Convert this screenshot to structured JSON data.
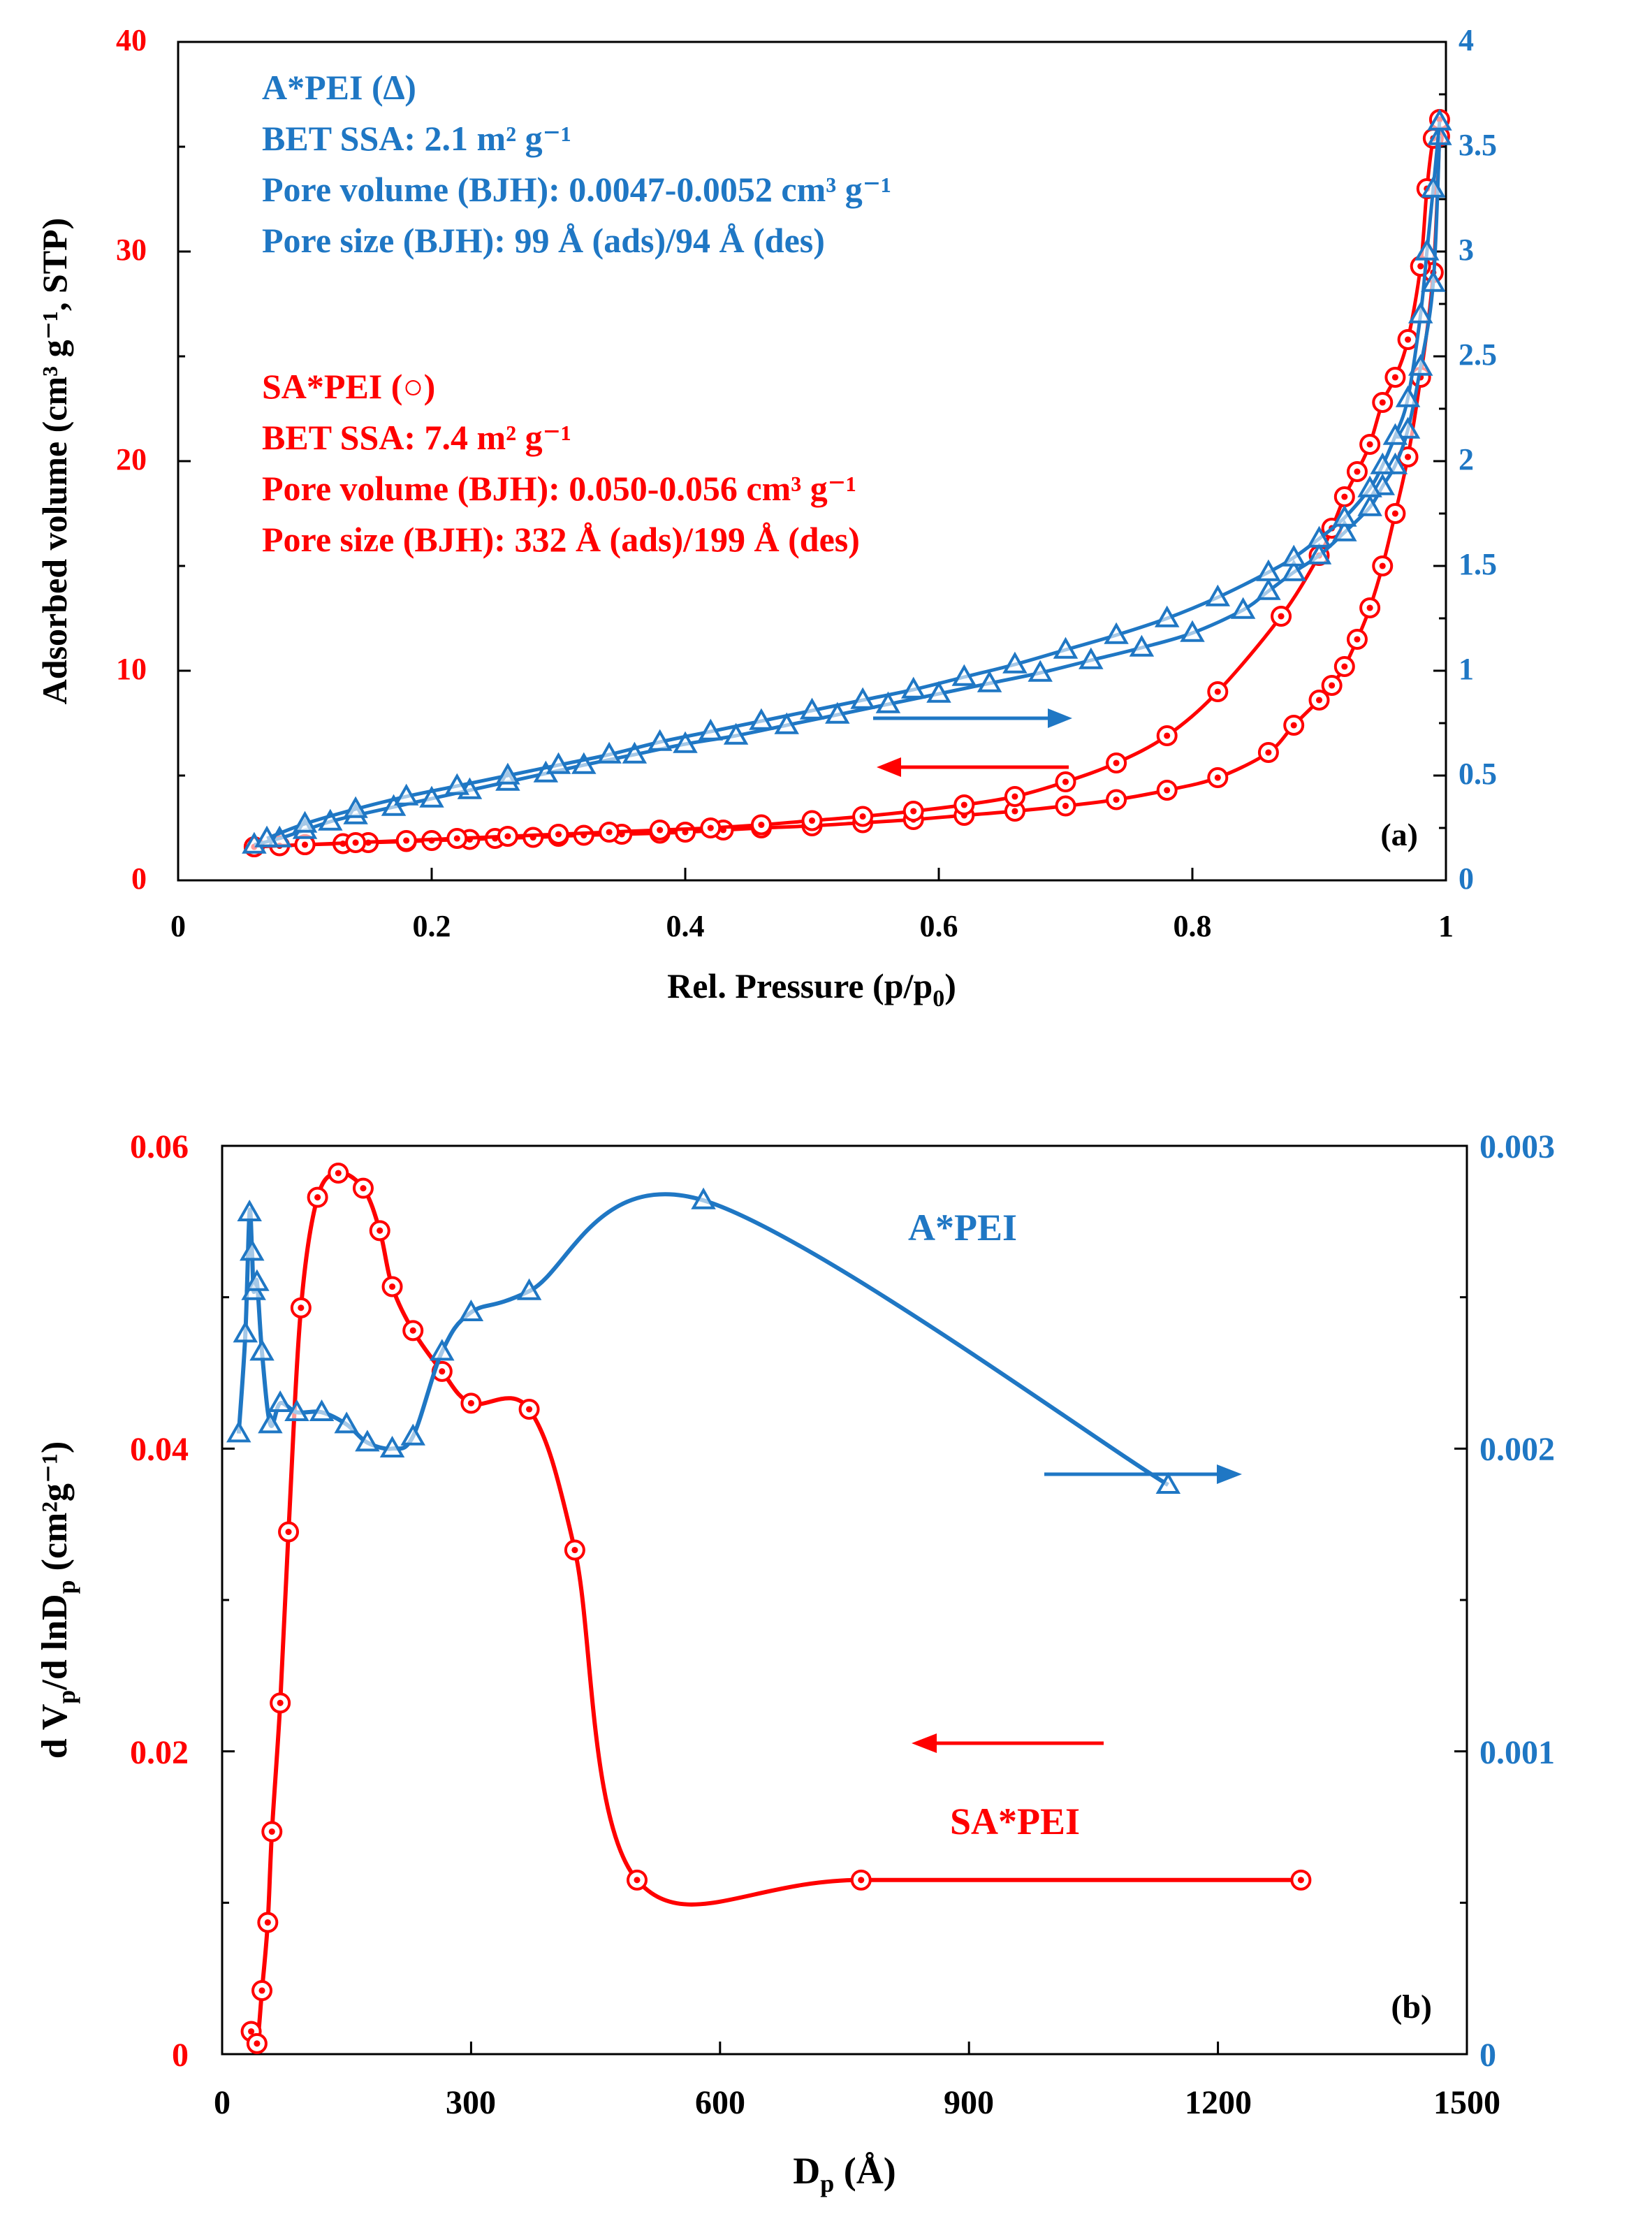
{
  "colors": {
    "red": "#ff0000",
    "blue": "#1f77c4",
    "axis": "#000000"
  },
  "chart_data": [
    {
      "panel_label": "(a)",
      "type": "line",
      "xlabel": "Rel. Pressure (p/p",
      "xlabel_sub": "0",
      "xlabel_end": ")",
      "ylabel_left": "Adsorbed volume (cm³ g⁻¹, STP)",
      "xlim": [
        0,
        1
      ],
      "ylim_left": [
        0,
        40
      ],
      "ylim_right": [
        0,
        4
      ],
      "xticks": [
        "0",
        "0.2",
        "0.4",
        "0.6",
        "0.8",
        "1"
      ],
      "yticks_left": [
        "0",
        "10",
        "20",
        "30",
        "40"
      ],
      "yticks_right": [
        "0",
        "0.5",
        "1",
        "1.5",
        "2",
        "2.5",
        "3",
        "3.5",
        "4"
      ],
      "annotations": {
        "blue": [
          "A*PEI (∆)",
          "BET SSA:  2.1 m² g⁻¹",
          "Pore volume (BJH): 0.0047-0.0052 cm³ g⁻¹",
          "Pore size (BJH): 99 Å (ads)/94 Å (des)"
        ],
        "red": [
          "SA*PEI (○)",
          "BET SSA:  7.4 m² g⁻¹",
          "Pore volume (BJH): 0.050-0.056 cm³ g⁻¹",
          "Pore size (BJH): 332 Å (ads)/199 Å (des)"
        ]
      },
      "series": [
        {
          "label": "SA*PEI adsorption",
          "axis": "left",
          "marker": "circle",
          "color": "red",
          "x": [
            0.06,
            0.08,
            0.1,
            0.13,
            0.15,
            0.18,
            0.2,
            0.23,
            0.25,
            0.28,
            0.3,
            0.32,
            0.35,
            0.38,
            0.4,
            0.43,
            0.46,
            0.5,
            0.54,
            0.58,
            0.62,
            0.66,
            0.7,
            0.74,
            0.78,
            0.82,
            0.86,
            0.88,
            0.9,
            0.91,
            0.92,
            0.93,
            0.94,
            0.95,
            0.96,
            0.97,
            0.98,
            0.99,
            0.995
          ],
          "y": [
            1.6,
            1.65,
            1.7,
            1.75,
            1.8,
            1.85,
            1.9,
            1.95,
            2.0,
            2.05,
            2.1,
            2.15,
            2.2,
            2.25,
            2.3,
            2.4,
            2.5,
            2.6,
            2.75,
            2.9,
            3.1,
            3.3,
            3.55,
            3.85,
            4.3,
            4.9,
            6.1,
            7.4,
            8.6,
            9.3,
            10.2,
            11.5,
            13.0,
            15.0,
            17.5,
            20.2,
            24.0,
            29.0,
            35.5
          ]
        },
        {
          "label": "SA*PEI desorption",
          "axis": "left",
          "marker": "circle",
          "color": "red",
          "x": [
            0.995,
            0.99,
            0.985,
            0.98,
            0.97,
            0.96,
            0.95,
            0.94,
            0.93,
            0.92,
            0.91,
            0.9,
            0.87,
            0.82,
            0.78,
            0.74,
            0.7,
            0.66,
            0.62,
            0.58,
            0.54,
            0.5,
            0.46,
            0.42,
            0.38,
            0.34,
            0.3,
            0.26,
            0.22,
            0.18,
            0.14,
            0.1,
            0.06
          ],
          "y": [
            36.3,
            35.4,
            33.0,
            29.3,
            25.8,
            24.0,
            22.8,
            20.8,
            19.5,
            18.3,
            16.8,
            15.5,
            12.6,
            9.0,
            6.9,
            5.6,
            4.7,
            4.0,
            3.6,
            3.3,
            3.05,
            2.85,
            2.65,
            2.5,
            2.4,
            2.3,
            2.2,
            2.1,
            2.0,
            1.9,
            1.8,
            1.7,
            1.6
          ]
        },
        {
          "label": "A*PEI adsorption",
          "axis": "right",
          "marker": "triangle",
          "color": "blue",
          "x": [
            0.06,
            0.08,
            0.1,
            0.12,
            0.14,
            0.17,
            0.2,
            0.23,
            0.26,
            0.29,
            0.32,
            0.36,
            0.4,
            0.44,
            0.48,
            0.52,
            0.56,
            0.6,
            0.64,
            0.68,
            0.72,
            0.76,
            0.8,
            0.84,
            0.86,
            0.88,
            0.9,
            0.92,
            0.94,
            0.95,
            0.96,
            0.97,
            0.98,
            0.99,
            0.995
          ],
          "y": [
            0.17,
            0.2,
            0.24,
            0.28,
            0.31,
            0.35,
            0.39,
            0.43,
            0.47,
            0.51,
            0.55,
            0.6,
            0.65,
            0.69,
            0.74,
            0.79,
            0.84,
            0.89,
            0.94,
            0.99,
            1.05,
            1.11,
            1.18,
            1.29,
            1.38,
            1.47,
            1.55,
            1.66,
            1.78,
            1.88,
            1.98,
            2.15,
            2.45,
            2.85,
            3.55
          ]
        },
        {
          "label": "A*PEI desorption",
          "axis": "right",
          "marker": "triangle",
          "color": "blue",
          "x": [
            0.995,
            0.99,
            0.985,
            0.98,
            0.97,
            0.96,
            0.95,
            0.94,
            0.92,
            0.9,
            0.88,
            0.86,
            0.82,
            0.78,
            0.74,
            0.7,
            0.66,
            0.62,
            0.58,
            0.54,
            0.5,
            0.46,
            0.42,
            0.38,
            0.34,
            0.3,
            0.26,
            0.22,
            0.18,
            0.14,
            0.1,
            0.07
          ],
          "y": [
            3.62,
            3.3,
            3.0,
            2.7,
            2.3,
            2.12,
            1.98,
            1.87,
            1.73,
            1.63,
            1.54,
            1.47,
            1.35,
            1.25,
            1.17,
            1.1,
            1.03,
            0.97,
            0.91,
            0.86,
            0.81,
            0.76,
            0.71,
            0.66,
            0.6,
            0.55,
            0.5,
            0.45,
            0.4,
            0.34,
            0.27,
            0.2
          ]
        }
      ]
    },
    {
      "panel_label": "(b)",
      "type": "line",
      "xlabel": "D",
      "xlabel_sub": "p",
      "xlabel_end": " (Å)",
      "ylabel_left": "d V",
      "ylabel_left_sub1": "p",
      "ylabel_left_mid": "/d  lnD",
      "ylabel_left_sub2": "p",
      "ylabel_left_end": " (cm²g⁻¹)",
      "xlim": [
        0,
        1500
      ],
      "ylim_left": [
        0,
        0.06
      ],
      "ylim_right": [
        0,
        0.003
      ],
      "xticks": [
        "0",
        "300",
        "600",
        "900",
        "1200",
        "1500"
      ],
      "yticks_left": [
        "0",
        "0.02",
        "0.04",
        "0.06"
      ],
      "yticks_right": [
        "0",
        "0.001",
        "0.002",
        "0.003"
      ],
      "annotations": {
        "blue_label": "A*PEI",
        "red_label": "SA*PEI"
      },
      "series": [
        {
          "label": "SA*PEI",
          "axis": "left",
          "marker": "circle",
          "color": "red",
          "x": [
            35,
            42,
            48,
            55,
            60,
            70,
            80,
            95,
            115,
            140,
            170,
            190,
            205,
            230,
            265,
            300,
            370,
            425,
            500,
            770,
            1300
          ],
          "y": [
            0.0015,
            0.0007,
            0.0042,
            0.0087,
            0.0147,
            0.0232,
            0.0345,
            0.0493,
            0.0566,
            0.0582,
            0.0572,
            0.0544,
            0.0507,
            0.0478,
            0.0451,
            0.043,
            0.0426,
            0.0333,
            0.0115,
            0.0115,
            0.0115
          ]
        },
        {
          "label": "A*PEI",
          "axis": "right",
          "marker": "triangle",
          "color": "blue",
          "x": [
            20,
            28,
            33,
            36,
            38,
            42,
            48,
            58,
            70,
            90,
            120,
            150,
            175,
            205,
            230,
            265,
            300,
            370,
            580,
            1140
          ],
          "y": [
            0.00205,
            0.00238,
            0.00278,
            0.00265,
            0.00252,
            0.00255,
            0.00232,
            0.00208,
            0.00215,
            0.00212,
            0.00212,
            0.00208,
            0.00202,
            0.002,
            0.00204,
            0.00232,
            0.00245,
            0.00252,
            0.00282,
            0.00188
          ]
        }
      ]
    }
  ]
}
